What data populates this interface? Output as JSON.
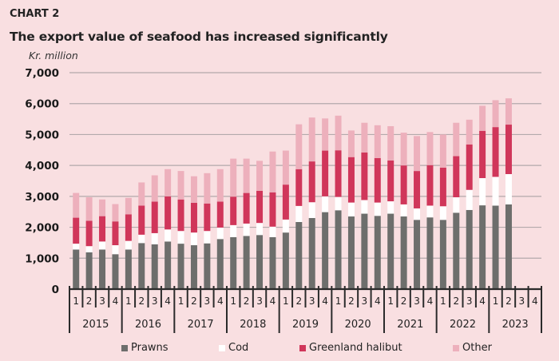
{
  "header": {
    "label": "CHART 2",
    "title": "The export value of seafood has increased significantly",
    "unit": "Kr. million"
  },
  "colors": {
    "background": "#f9dfe1",
    "Prawns": "#6d6e6c",
    "Cod": "#ffffff",
    "Greenland halibut": "#d0365a",
    "Other": "#edb0bc",
    "grid": "#b3a9ab",
    "axis": "#2b2b2b"
  },
  "chart_data": {
    "type": "bar",
    "stacked": true,
    "title": "The export value of seafood has increased significantly",
    "ylabel": "Kr. million",
    "xlabel": "",
    "ylim": [
      0,
      7000
    ],
    "yticks": [
      0,
      1000,
      2000,
      3000,
      4000,
      5000,
      6000,
      7000
    ],
    "ytick_labels": [
      "0",
      "1,000",
      "2,000",
      "3,000",
      "4,000",
      "5,000",
      "6,000",
      "7,000"
    ],
    "grid": true,
    "legend_position": "bottom",
    "years": [
      "2015",
      "2016",
      "2017",
      "2018",
      "2019",
      "2020",
      "2021",
      "2022",
      "2023"
    ],
    "quarters": [
      "1",
      "2",
      "3",
      "4"
    ],
    "categories": [
      "2015Q1",
      "2015Q2",
      "2015Q3",
      "2015Q4",
      "2016Q1",
      "2016Q2",
      "2016Q3",
      "2016Q4",
      "2017Q1",
      "2017Q2",
      "2017Q3",
      "2017Q4",
      "2018Q1",
      "2018Q2",
      "2018Q3",
      "2018Q4",
      "2019Q1",
      "2019Q2",
      "2019Q3",
      "2019Q4",
      "2020Q1",
      "2020Q2",
      "2020Q3",
      "2020Q4",
      "2021Q1",
      "2021Q2",
      "2021Q3",
      "2021Q4",
      "2022Q1",
      "2022Q2",
      "2022Q3",
      "2022Q4",
      "2023Q1",
      "2023Q2",
      "2023Q3",
      "2023Q4"
    ],
    "series": [
      {
        "name": "Prawns",
        "values": [
          1280,
          1190,
          1280,
          1130,
          1280,
          1490,
          1450,
          1540,
          1470,
          1420,
          1480,
          1620,
          1680,
          1720,
          1750,
          1680,
          1830,
          2170,
          2300,
          2490,
          2550,
          2350,
          2440,
          2370,
          2440,
          2350,
          2240,
          2320,
          2240,
          2470,
          2560,
          2710,
          2700,
          2740,
          null,
          null
        ]
      },
      {
        "name": "Cod",
        "values": [
          190,
          200,
          260,
          290,
          280,
          270,
          360,
          390,
          410,
          410,
          400,
          370,
          390,
          400,
          390,
          340,
          420,
          520,
          510,
          510,
          430,
          450,
          440,
          430,
          400,
          390,
          370,
          380,
          440,
          500,
          650,
          880,
          930,
          980,
          null,
          null
        ]
      },
      {
        "name": "Greenland halibut",
        "values": [
          840,
          820,
          820,
          770,
          860,
          940,
          1020,
          1070,
          1020,
          960,
          890,
          840,
          920,
          990,
          1040,
          1110,
          1130,
          1190,
          1320,
          1480,
          1510,
          1470,
          1540,
          1440,
          1320,
          1260,
          1210,
          1310,
          1250,
          1330,
          1470,
          1530,
          1610,
          1600,
          null,
          null
        ]
      },
      {
        "name": "Other",
        "values": [
          800,
          760,
          540,
          560,
          530,
          750,
          850,
          880,
          920,
          860,
          980,
          1050,
          1230,
          1110,
          970,
          1320,
          1100,
          1450,
          1420,
          1040,
          1120,
          860,
          960,
          1060,
          1110,
          1060,
          1130,
          1070,
          1070,
          1080,
          800,
          810,
          870,
          850,
          null,
          null
        ]
      }
    ]
  },
  "legend": [
    {
      "name": "Prawns"
    },
    {
      "name": "Cod"
    },
    {
      "name": "Greenland halibut"
    },
    {
      "name": "Other"
    }
  ]
}
